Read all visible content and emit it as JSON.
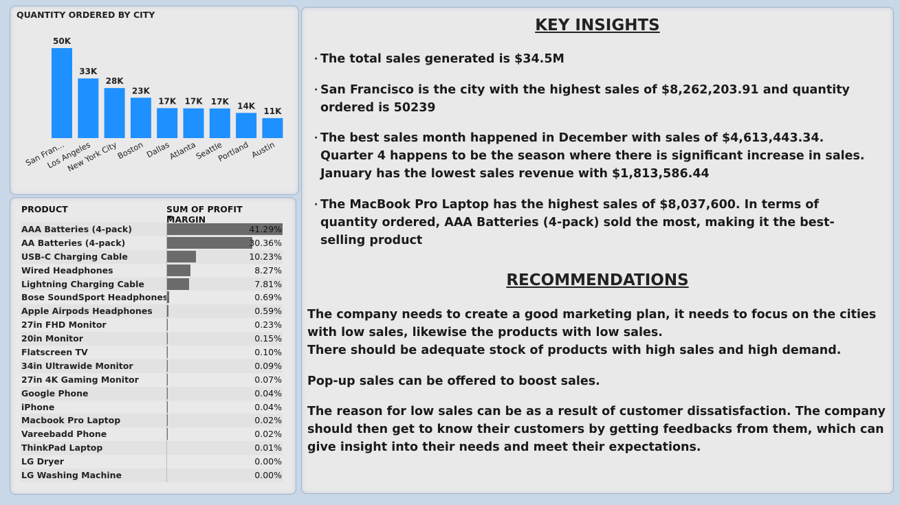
{
  "chart_data": {
    "type": "bar",
    "title": "QUANTITY ORDERED BY CITY",
    "categories": [
      "San Fran...",
      "Los Angeles",
      "New York City",
      "Boston",
      "Dallas",
      "Atlanta",
      "Seattle",
      "Portland",
      "Austin"
    ],
    "values": [
      50239,
      33289,
      27932,
      22528,
      16730,
      16602,
      16553,
      14053,
      11153
    ],
    "data_labels": [
      "50K",
      "33K",
      "28K",
      "23K",
      "17K",
      "17K",
      "17K",
      "14K",
      "11K"
    ],
    "colors": {
      "bar": "#1e90ff"
    },
    "ylim": [
      0,
      50239
    ]
  },
  "table": {
    "col_product": "PRODUCT",
    "col_margin": "SUM OF PROFIT MARGIN",
    "bar_color": "#6b6b6b",
    "rows": [
      {
        "product": "AAA Batteries (4-pack)",
        "value_text": "41.29%",
        "value": 41.29
      },
      {
        "product": "AA Batteries (4-pack)",
        "value_text": "30.36%",
        "value": 30.36
      },
      {
        "product": "USB-C Charging Cable",
        "value_text": "10.23%",
        "value": 10.23
      },
      {
        "product": "Wired Headphones",
        "value_text": "8.27%",
        "value": 8.27
      },
      {
        "product": "Lightning Charging Cable",
        "value_text": "7.81%",
        "value": 7.81
      },
      {
        "product": "Bose SoundSport Headphones",
        "value_text": "0.69%",
        "value": 0.69
      },
      {
        "product": "Apple Airpods Headphones",
        "value_text": "0.59%",
        "value": 0.59
      },
      {
        "product": "27in FHD Monitor",
        "value_text": "0.23%",
        "value": 0.23
      },
      {
        "product": "20in Monitor",
        "value_text": "0.15%",
        "value": 0.15
      },
      {
        "product": "Flatscreen TV",
        "value_text": "0.10%",
        "value": 0.1
      },
      {
        "product": "34in Ultrawide Monitor",
        "value_text": "0.09%",
        "value": 0.09
      },
      {
        "product": "27in 4K Gaming Monitor",
        "value_text": "0.07%",
        "value": 0.07
      },
      {
        "product": "Google Phone",
        "value_text": "0.04%",
        "value": 0.04
      },
      {
        "product": "iPhone",
        "value_text": "0.04%",
        "value": 0.04
      },
      {
        "product": "Macbook Pro Laptop",
        "value_text": "0.02%",
        "value": 0.02
      },
      {
        "product": "Vareebadd Phone",
        "value_text": "0.02%",
        "value": 0.02
      },
      {
        "product": "ThinkPad Laptop",
        "value_text": "0.01%",
        "value": 0.01
      },
      {
        "product": "LG Dryer",
        "value_text": "0.00%",
        "value": 0.0
      },
      {
        "product": "LG Washing Machine",
        "value_text": "0.00%",
        "value": 0.0
      }
    ]
  },
  "insights": {
    "title": "KEY INSIGHTS",
    "bullet_char": "·",
    "items": [
      "The total sales generated is $34.5M",
      "San Francisco is the city with the highest sales of $8,262,203.91 and quantity ordered is 50239",
      "The best sales month happened in December with sales of $4,613,443.34. Quarter 4 happens to be the season where there is significant increase in sales. January has the lowest sales revenue with $1,813,586.44",
      "The MacBook Pro Laptop has the highest sales of $8,037,600. In terms of quantity ordered, AAA Batteries (4-pack) sold the most, making it the best-selling product"
    ]
  },
  "recommendations": {
    "title": "RECOMMENDATIONS",
    "para1_line1": "The company needs to create a good marketing plan, it needs to focus on the cities with low sales, likewise the products with low sales.",
    "para1_line2": "There should be adequate stock of products with high sales and high demand.",
    "para2": "Pop-up sales can be offered to boost sales.",
    "para3": "The reason for low sales can be as a result of customer dissatisfaction.  The company should then get to know their customers by getting feedbacks from them, which can give insight into their needs and meet their expectations."
  }
}
